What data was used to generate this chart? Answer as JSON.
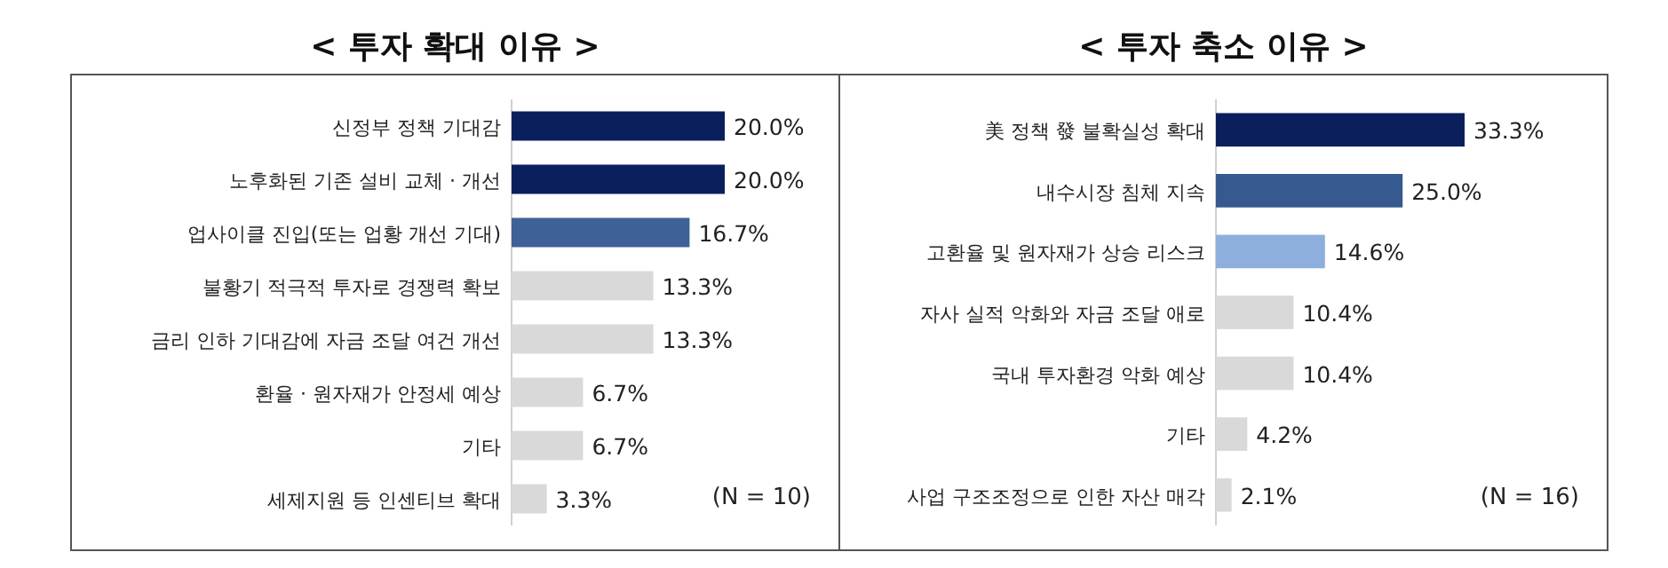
{
  "chart_data": [
    {
      "type": "bar",
      "orientation": "horizontal",
      "title": "< 투자 확대 이유 >",
      "categories": [
        "신정부 정책 기대감",
        "노후화된 기존 설비 교체 · 개선",
        "업사이클 진입(또는 업황 개선 기대)",
        "불황기 적극적 투자로 경쟁력 확보",
        "금리 인하 기대감에 자금 조달 여건 개선",
        "환율 · 원자재가 안정세 예상",
        "기타",
        "세제지원 등 인센티브 확대"
      ],
      "values": [
        20.0,
        20.0,
        16.7,
        13.3,
        13.3,
        6.7,
        6.7,
        3.3
      ],
      "value_labels": [
        "20.0%",
        "20.0%",
        "16.7%",
        "13.3%",
        "13.3%",
        "6.7%",
        "6.7%",
        "3.3%"
      ],
      "colors": [
        "#0b1f5c",
        "#0b1f5c",
        "#3e6198",
        "#d9d9d9",
        "#d9d9d9",
        "#d9d9d9",
        "#d9d9d9",
        "#d9d9d9"
      ],
      "annotations": [
        "(N = 10)"
      ]
    },
    {
      "type": "bar",
      "orientation": "horizontal",
      "title": "< 투자 축소 이유 >",
      "categories": [
        "美 정책 發 불확실성 확대",
        "내수시장 침체 지속",
        "고환율 및 원자재가 상승 리스크",
        "자사 실적 악화와 자금 조달 애로",
        "국내 투자환경 악화 예상",
        "기타",
        "사업 구조조정으로 인한 자산 매각"
      ],
      "values": [
        33.3,
        25.0,
        14.6,
        10.4,
        10.4,
        4.2,
        2.1
      ],
      "value_labels": [
        "33.3%",
        "25.0%",
        "14.6%",
        "10.4%",
        "10.4%",
        "4.2%",
        "2.1%"
      ],
      "colors": [
        "#0b1f5c",
        "#36598f",
        "#8eaedb",
        "#d9d9d9",
        "#d9d9d9",
        "#d9d9d9",
        "#d9d9d9"
      ],
      "annotations": [
        "(N = 16)"
      ]
    }
  ]
}
